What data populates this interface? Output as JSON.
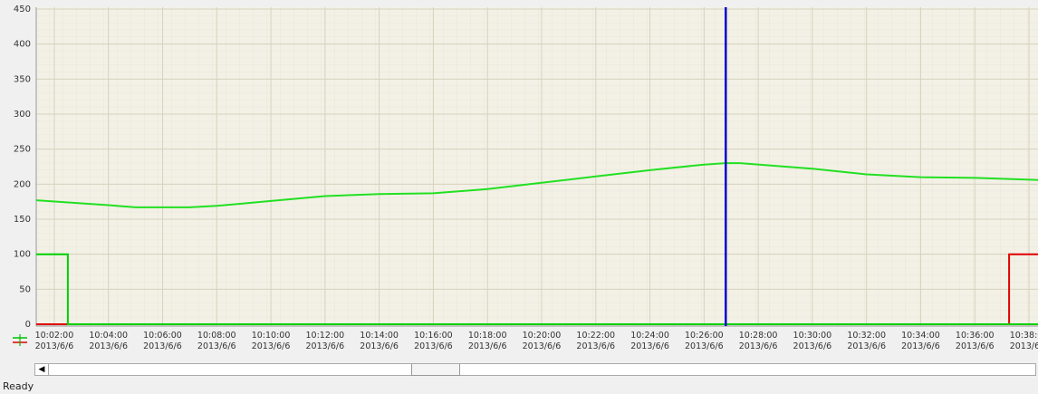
{
  "status": "Ready",
  "chart_data": {
    "type": "line",
    "xlim": [
      "10:01:20",
      "10:38:20"
    ],
    "xticks": [
      {
        "value": "10:02:00",
        "label": "10:02:00\n2013/6/6"
      },
      {
        "value": "10:04:00",
        "label": "10:04:00\n2013/6/6"
      },
      {
        "value": "10:06:00",
        "label": "10:06:00\n2013/6/6"
      },
      {
        "value": "10:08:00",
        "label": "10:08:00\n2013/6/6"
      },
      {
        "value": "10:10:00",
        "label": "10:10:00\n2013/6/6"
      },
      {
        "value": "10:12:00",
        "label": "10:12:00\n2013/6/6"
      },
      {
        "value": "10:14:00",
        "label": "10:14:00\n2013/6/6"
      },
      {
        "value": "10:16:00",
        "label": "10:16:00\n2013/6/6"
      },
      {
        "value": "10:18:00",
        "label": "10:18:00\n2013/6/6"
      },
      {
        "value": "10:20:00",
        "label": "10:20:00\n2013/6/6"
      },
      {
        "value": "10:22:00",
        "label": "10:22:00\n2013/6/6"
      },
      {
        "value": "10:24:00",
        "label": "10:24:00\n2013/6/6"
      },
      {
        "value": "10:26:00",
        "label": "10:26:00\n2013/6/6"
      },
      {
        "value": "10:28:00",
        "label": "10:28:00\n2013/6/6"
      },
      {
        "value": "10:30:00",
        "label": "10:30:00\n2013/6/6"
      },
      {
        "value": "10:32:00",
        "label": "10:32:00\n2013/6/6"
      },
      {
        "value": "10:34:00",
        "label": "10:34:00\n2013/6/6"
      },
      {
        "value": "10:36:00",
        "label": "10:36:00\n2013/6/6"
      },
      {
        "value": "10:38:00",
        "label": "10:38:00\n2013/6/6"
      }
    ],
    "ylim": [
      0,
      450
    ],
    "yticks": [
      0,
      50,
      100,
      150,
      200,
      250,
      300,
      350,
      400,
      450
    ],
    "grid": true,
    "cursor_x": "10:26:48",
    "cursor_color": "#0000cc",
    "series": [
      {
        "color": "#e00000",
        "x": [
          "10:01:20",
          "10:37:16",
          "10:37:16",
          "10:38:20"
        ],
        "values": [
          0,
          0,
          100,
          100
        ]
      },
      {
        "color": "#00d000",
        "x": [
          "10:01:20",
          "10:02:30",
          "10:02:30",
          "10:38:20"
        ],
        "values": [
          100,
          100,
          0,
          0
        ]
      },
      {
        "color": "#22e022",
        "x": [
          "10:01:20",
          "10:04:00",
          "10:05:00",
          "10:07:00",
          "10:08:00",
          "10:10:00",
          "10:12:00",
          "10:14:00",
          "10:16:00",
          "10:18:00",
          "10:20:00",
          "10:22:00",
          "10:24:00",
          "10:26:00",
          "10:26:48",
          "10:27:20",
          "10:30:00",
          "10:32:00",
          "10:34:00",
          "10:36:00",
          "10:38:20"
        ],
        "values": [
          177,
          170,
          167,
          167,
          169,
          176,
          183,
          186,
          187,
          193,
          202,
          211,
          220,
          228,
          230,
          230,
          222,
          214,
          210,
          209,
          206
        ]
      }
    ]
  }
}
